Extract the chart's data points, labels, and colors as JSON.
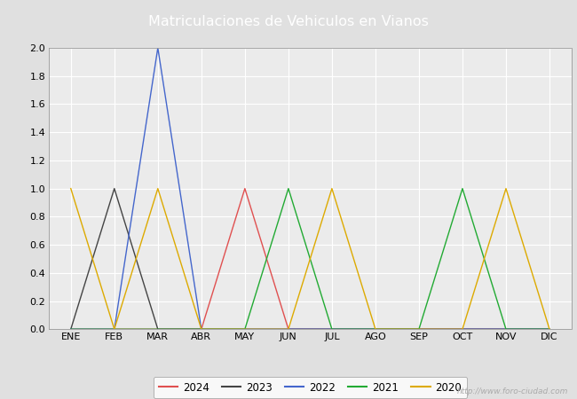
{
  "title": "Matriculaciones de Vehiculos en Vianos",
  "title_bg_color": "#6699cc",
  "months": [
    "ENE",
    "FEB",
    "MAR",
    "ABR",
    "MAY",
    "JUN",
    "JUL",
    "AGO",
    "SEP",
    "OCT",
    "NOV",
    "DIC"
  ],
  "series": {
    "2024": {
      "color": "#e05050",
      "values": [
        0,
        0,
        0,
        0,
        1,
        0,
        0,
        0,
        0,
        0,
        0,
        0
      ]
    },
    "2023": {
      "color": "#444444",
      "values": [
        0,
        1,
        0,
        0,
        0,
        0,
        0,
        0,
        0,
        0,
        0,
        0
      ]
    },
    "2022": {
      "color": "#4466cc",
      "values": [
        0,
        0,
        2,
        0,
        0,
        0,
        0,
        0,
        0,
        0,
        0,
        0
      ]
    },
    "2021": {
      "color": "#22aa33",
      "values": [
        0,
        0,
        0,
        0,
        0,
        1,
        0,
        0,
        0,
        1,
        0,
        0
      ]
    },
    "2020": {
      "color": "#ddaa00",
      "values": [
        1,
        0,
        1,
        0,
        0,
        0,
        1,
        0,
        0,
        0,
        1,
        0
      ]
    }
  },
  "ylim": [
    0,
    2.0
  ],
  "yticks": [
    0.0,
    0.2,
    0.4,
    0.6,
    0.8,
    1.0,
    1.2,
    1.4,
    1.6,
    1.8,
    2.0
  ],
  "bg_color": "#e0e0e0",
  "plot_bg_color": "#ebebeb",
  "grid_color": "#ffffff",
  "watermark": "http://www.foro-ciudad.com",
  "legend_years": [
    "2024",
    "2023",
    "2022",
    "2021",
    "2020"
  ],
  "figwidth": 6.5,
  "figheight": 4.5,
  "dpi": 100
}
